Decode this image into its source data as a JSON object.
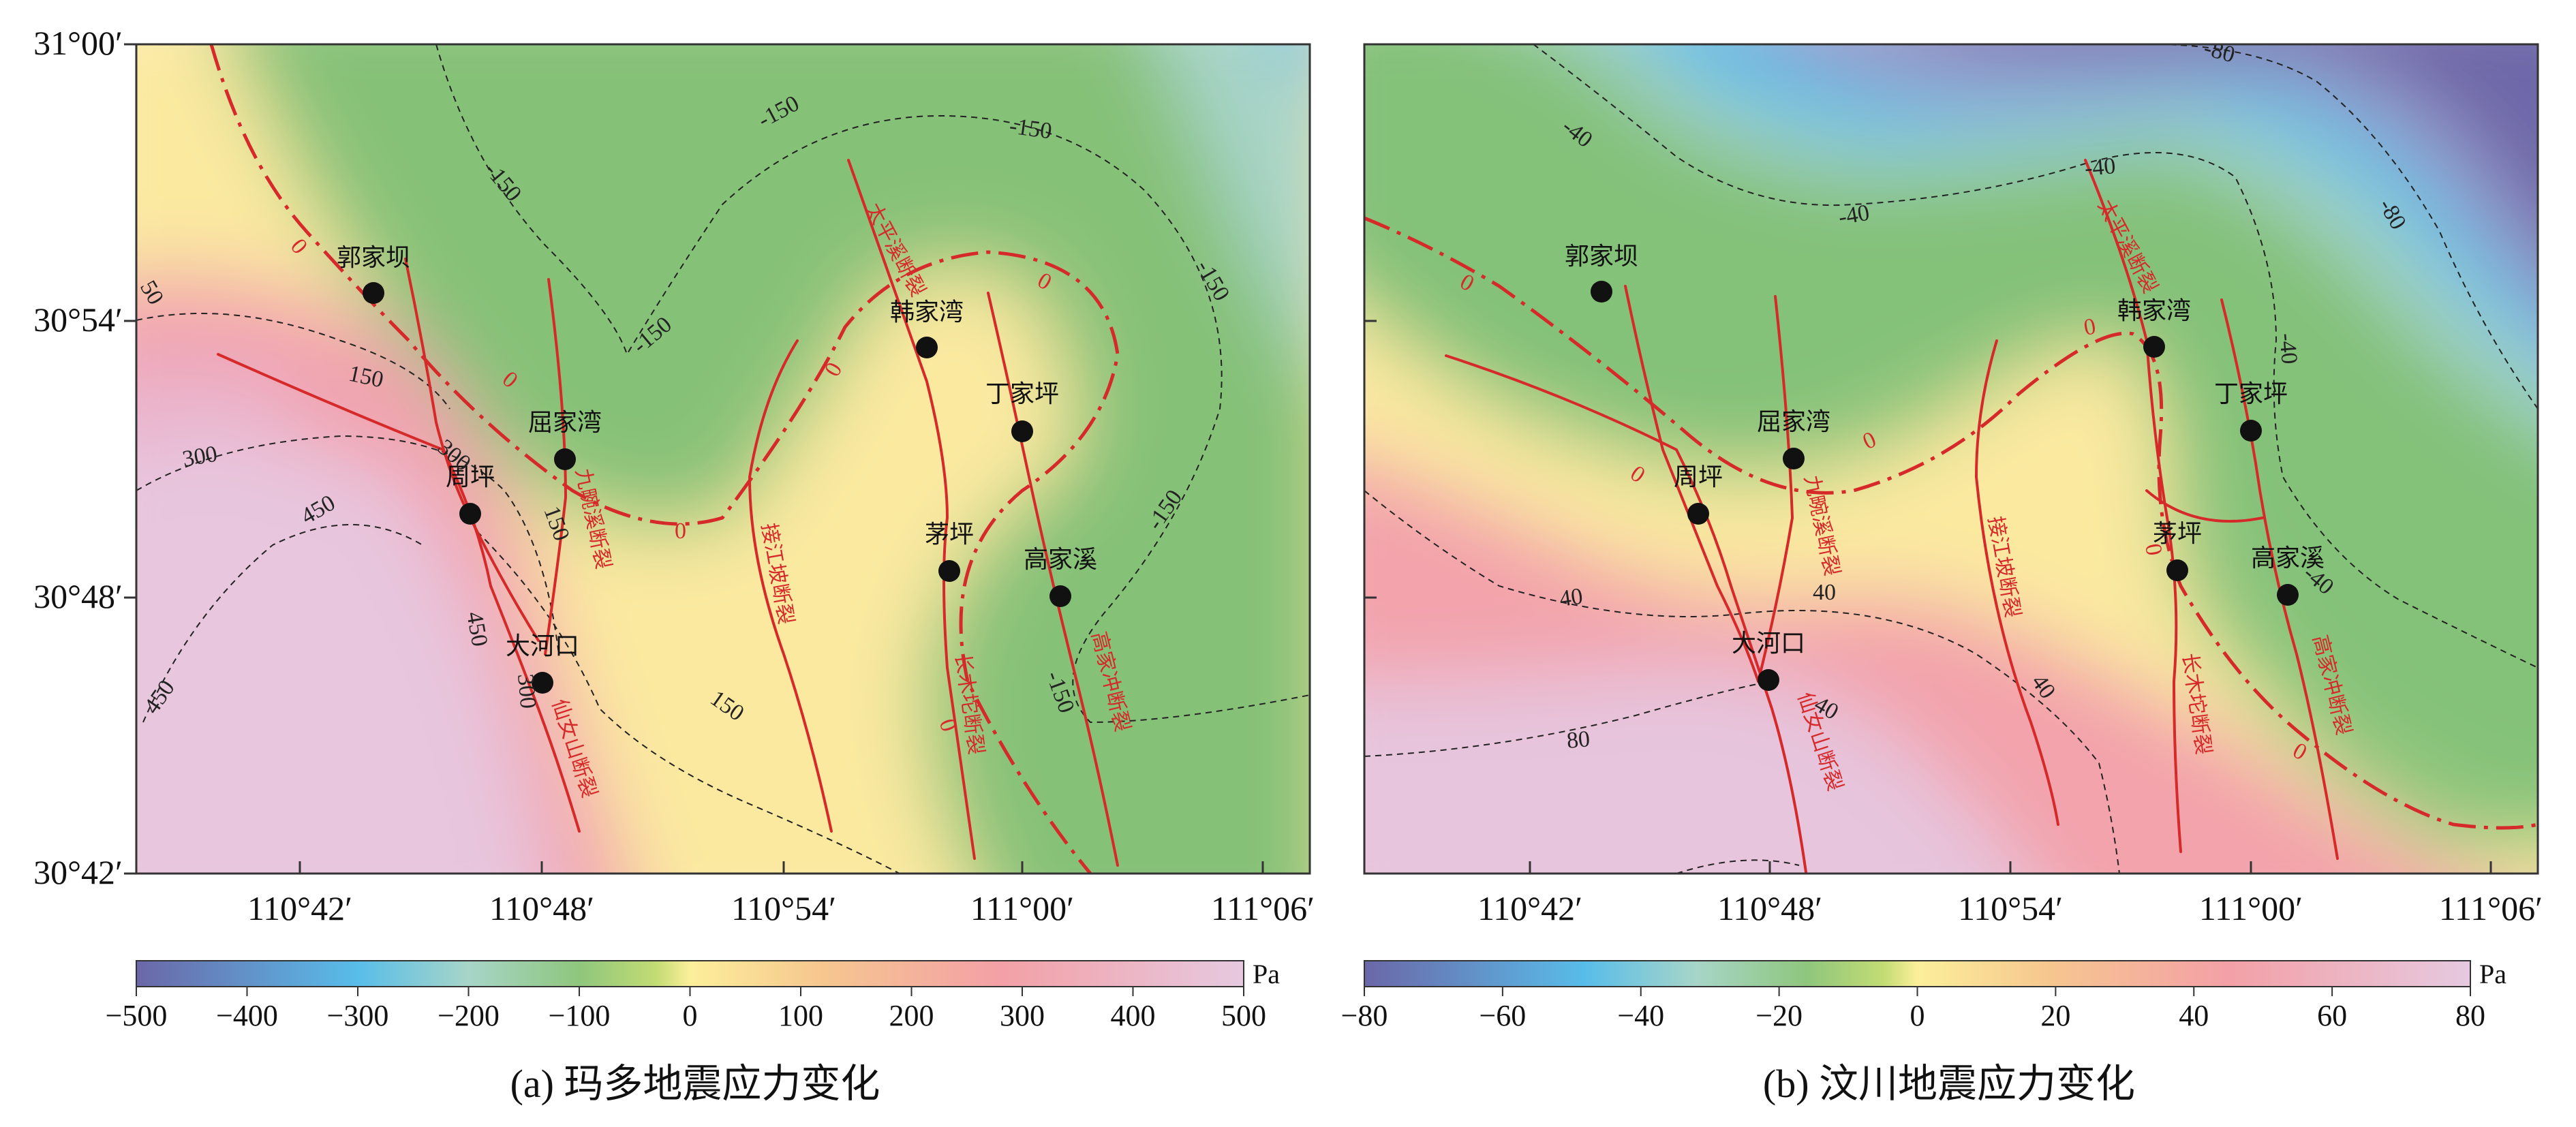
{
  "figure": {
    "panels": [
      {
        "id": "a",
        "caption": "(a)  玛多地震应力变化",
        "lat_labels": [
          "31°00′",
          "30°54′",
          "30°48′",
          "30°42′"
        ],
        "lon_labels": [
          "110°42′",
          "110°48′",
          "110°54′",
          "111°00′",
          "111°06′"
        ],
        "colorbar": {
          "unit": "Pa",
          "ticks": [
            "−500",
            "−400",
            "−300",
            "−200",
            "−100",
            "0",
            "100",
            "200",
            "300",
            "400",
            "500"
          ],
          "min": -500,
          "max": 500
        },
        "places": [
          "郭家坝",
          "屈家湾",
          "周坪",
          "大河口",
          "韩家湾",
          "丁家坪",
          "茅坪",
          "高家溪"
        ],
        "faults": [
          "太平溪断裂",
          "九畹溪断裂",
          "接江坡断裂",
          "仙女山断裂",
          "长木坨断裂",
          "高家冲断裂"
        ],
        "contour_labels": [
          "-150",
          "-150",
          "-150",
          "-150",
          "-150",
          "-150",
          "-150",
          "-150",
          "150",
          "150",
          "150",
          "150",
          "300",
          "300",
          "300",
          "450",
          "450",
          "450",
          "50"
        ],
        "zero_labels": [
          "0",
          "0",
          "0",
          "0",
          "0",
          "0"
        ]
      },
      {
        "id": "b",
        "caption": "(b) 汶川地震应力变化",
        "lat_labels": [],
        "lon_labels": [
          "110°42′",
          "110°48′",
          "110°54′",
          "111°00′",
          "111°06′"
        ],
        "colorbar": {
          "unit": "Pa",
          "ticks": [
            "−80",
            "−60",
            "−40",
            "−20",
            "0",
            "20",
            "40",
            "60",
            "80"
          ],
          "min": -80,
          "max": 80
        },
        "places": [
          "郭家坝",
          "屈家湾",
          "周坪",
          "大河口",
          "韩家湾",
          "丁家坪",
          "茅坪",
          "高家溪"
        ],
        "faults": [
          "太平溪断裂",
          "九畹溪断裂",
          "接江坡断裂",
          "仙女山断裂",
          "长木坨断裂",
          "高家冲断裂"
        ],
        "contour_labels": [
          "-40",
          "-40",
          "-40",
          "-40",
          "-40",
          "-80",
          "-80",
          "40",
          "40",
          "40",
          "40",
          "80"
        ],
        "zero_labels": [
          "0",
          "0",
          "0",
          "0",
          "0",
          "0"
        ]
      }
    ],
    "colors": {
      "fault": "#d62a2a",
      "colormap": [
        "#6b67a8",
        "#58bde9",
        "#a7d5c8",
        "#8fc67d",
        "#c3dc74",
        "#fcef9a",
        "#f6c68f",
        "#f3a0a6",
        "#eec3da",
        "#e6c9e0"
      ]
    }
  }
}
